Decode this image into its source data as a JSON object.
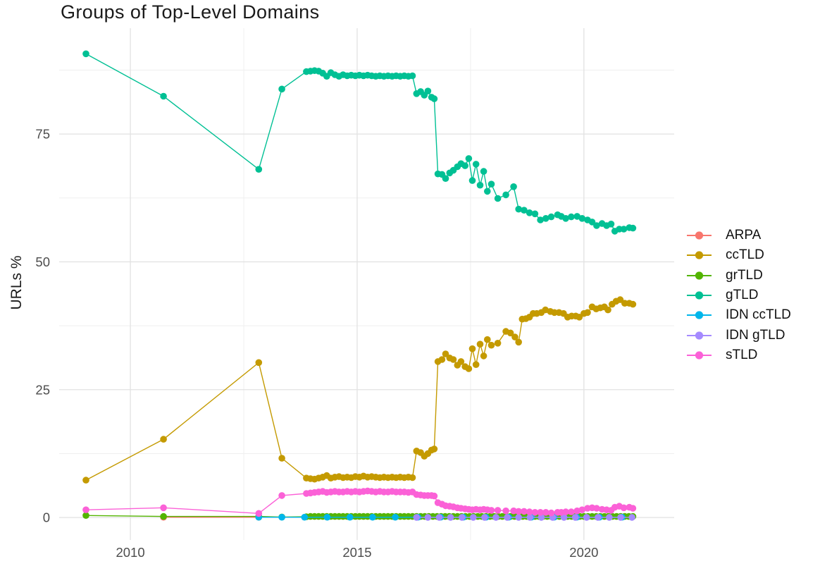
{
  "chart_data": {
    "type": "line",
    "title": "Groups of Top-Level Domains",
    "xlabel": "",
    "ylabel": "URLs %",
    "grid": true,
    "legend_position": "right",
    "xlim": [
      2008.43,
      2021.99
    ],
    "ylim": [
      -4.4,
      95.7
    ],
    "x_ticks": {
      "major": [
        2010,
        2015,
        2020
      ],
      "minor": [
        2012.5,
        2017.5
      ],
      "labels": [
        "2010",
        "2015",
        "2020"
      ]
    },
    "y_ticks": {
      "major": [
        0,
        25,
        50,
        75
      ],
      "minor": [
        12.5,
        37.5,
        62.5,
        87.5
      ],
      "labels": [
        "0",
        "25",
        "50",
        "75"
      ]
    },
    "colors": {
      "grid_major": "#e2e2e2",
      "grid_minor": "#f0f0f0",
      "tick_text": "#4d4d4d",
      "text": "#1a1a1a",
      "background": "#ffffff"
    },
    "series": [
      {
        "name": "ARPA",
        "color": "#F8766D",
        "points": [
          [
            2010.73,
            0.05
          ],
          [
            2012.83,
            0.05
          ]
        ]
      },
      {
        "name": "ccTLD",
        "color": "#C49A00",
        "points": [
          [
            2009.02,
            7.3
          ],
          [
            2010.73,
            15.3
          ],
          [
            2012.83,
            30.3
          ],
          [
            2013.34,
            11.6
          ],
          [
            2013.88,
            7.7
          ],
          [
            2013.97,
            7.6
          ],
          [
            2014.06,
            7.5
          ],
          [
            2014.15,
            7.7
          ],
          [
            2014.24,
            7.9
          ],
          [
            2014.33,
            8.2
          ],
          [
            2014.42,
            7.7
          ],
          [
            2014.51,
            7.9
          ],
          [
            2014.6,
            8.0
          ],
          [
            2014.69,
            7.8
          ],
          [
            2014.78,
            7.9
          ],
          [
            2014.87,
            7.8
          ],
          [
            2014.96,
            8.0
          ],
          [
            2015.05,
            7.9
          ],
          [
            2015.14,
            8.1
          ],
          [
            2015.23,
            7.9
          ],
          [
            2015.32,
            8.0
          ],
          [
            2015.41,
            7.9
          ],
          [
            2015.5,
            7.8
          ],
          [
            2015.59,
            7.9
          ],
          [
            2015.68,
            7.8
          ],
          [
            2015.77,
            7.9
          ],
          [
            2015.86,
            7.8
          ],
          [
            2015.95,
            7.9
          ],
          [
            2016.04,
            7.8
          ],
          [
            2016.13,
            7.9
          ],
          [
            2016.22,
            7.8
          ],
          [
            2016.31,
            13.0
          ],
          [
            2016.4,
            12.7
          ],
          [
            2016.48,
            12.0
          ],
          [
            2016.56,
            12.5
          ],
          [
            2016.64,
            13.2
          ],
          [
            2016.7,
            13.4
          ],
          [
            2016.78,
            30.5
          ],
          [
            2016.87,
            30.9
          ],
          [
            2016.95,
            32.0
          ],
          [
            2017.04,
            31.2
          ],
          [
            2017.12,
            30.9
          ],
          [
            2017.21,
            29.8
          ],
          [
            2017.29,
            30.5
          ],
          [
            2017.38,
            29.5
          ],
          [
            2017.46,
            29.1
          ],
          [
            2017.54,
            33.0
          ],
          [
            2017.62,
            29.9
          ],
          [
            2017.71,
            33.9
          ],
          [
            2017.79,
            31.6
          ],
          [
            2017.87,
            34.8
          ],
          [
            2017.96,
            33.7
          ],
          [
            2018.1,
            34.1
          ],
          [
            2018.28,
            36.4
          ],
          [
            2018.38,
            36.1
          ],
          [
            2018.48,
            35.3
          ],
          [
            2018.56,
            34.3
          ],
          [
            2018.64,
            38.8
          ],
          [
            2018.72,
            38.9
          ],
          [
            2018.8,
            39.2
          ],
          [
            2018.88,
            39.9
          ],
          [
            2018.96,
            39.9
          ],
          [
            2019.06,
            40.1
          ],
          [
            2019.15,
            40.6
          ],
          [
            2019.26,
            40.3
          ],
          [
            2019.35,
            40.1
          ],
          [
            2019.45,
            40.1
          ],
          [
            2019.55,
            39.9
          ],
          [
            2019.64,
            39.2
          ],
          [
            2019.73,
            39.4
          ],
          [
            2019.82,
            39.4
          ],
          [
            2019.9,
            39.2
          ],
          [
            2020.0,
            39.9
          ],
          [
            2020.08,
            40.1
          ],
          [
            2020.18,
            41.2
          ],
          [
            2020.27,
            40.8
          ],
          [
            2020.36,
            41.0
          ],
          [
            2020.45,
            41.2
          ],
          [
            2020.53,
            40.6
          ],
          [
            2020.62,
            41.7
          ],
          [
            2020.71,
            42.3
          ],
          [
            2020.8,
            42.6
          ],
          [
            2020.9,
            41.9
          ],
          [
            2021.0,
            41.9
          ],
          [
            2021.08,
            41.7
          ]
        ]
      },
      {
        "name": "grTLD",
        "color": "#53B400",
        "points": [
          [
            2009.02,
            0.4
          ],
          [
            2010.73,
            0.2
          ],
          [
            2012.83,
            0.2
          ],
          [
            2013.34,
            0.1
          ],
          [
            2013.88,
            0.15
          ]
        ],
        "flat": {
          "from": 2013.97,
          "to": 2021.08,
          "step": 0.09,
          "value": 0.2
        }
      },
      {
        "name": "gTLD",
        "color": "#00C094",
        "points": [
          [
            2009.02,
            90.7
          ],
          [
            2010.73,
            82.4
          ],
          [
            2012.83,
            68.1
          ],
          [
            2013.34,
            83.8
          ],
          [
            2013.88,
            87.2
          ],
          [
            2013.97,
            87.3
          ],
          [
            2014.06,
            87.4
          ],
          [
            2014.15,
            87.3
          ],
          [
            2014.24,
            86.9
          ],
          [
            2014.33,
            86.3
          ],
          [
            2014.42,
            87.0
          ],
          [
            2014.51,
            86.6
          ],
          [
            2014.6,
            86.3
          ],
          [
            2014.69,
            86.6
          ],
          [
            2014.78,
            86.4
          ],
          [
            2014.87,
            86.5
          ],
          [
            2014.96,
            86.4
          ],
          [
            2015.05,
            86.5
          ],
          [
            2015.14,
            86.4
          ],
          [
            2015.23,
            86.5
          ],
          [
            2015.32,
            86.4
          ],
          [
            2015.41,
            86.3
          ],
          [
            2015.5,
            86.4
          ],
          [
            2015.59,
            86.3
          ],
          [
            2015.68,
            86.4
          ],
          [
            2015.77,
            86.3
          ],
          [
            2015.86,
            86.4
          ],
          [
            2015.95,
            86.3
          ],
          [
            2016.04,
            86.4
          ],
          [
            2016.13,
            86.3
          ],
          [
            2016.22,
            86.4
          ],
          [
            2016.31,
            82.9
          ],
          [
            2016.4,
            83.3
          ],
          [
            2016.48,
            82.6
          ],
          [
            2016.56,
            83.4
          ],
          [
            2016.64,
            82.2
          ],
          [
            2016.7,
            81.9
          ],
          [
            2016.78,
            67.2
          ],
          [
            2016.87,
            67.1
          ],
          [
            2016.95,
            66.3
          ],
          [
            2017.04,
            67.4
          ],
          [
            2017.12,
            67.9
          ],
          [
            2017.21,
            68.6
          ],
          [
            2017.29,
            69.2
          ],
          [
            2017.38,
            68.8
          ],
          [
            2017.46,
            70.2
          ],
          [
            2017.54,
            65.9
          ],
          [
            2017.62,
            69.1
          ],
          [
            2017.71,
            65.0
          ],
          [
            2017.79,
            67.7
          ],
          [
            2017.87,
            63.8
          ],
          [
            2017.96,
            65.2
          ],
          [
            2018.1,
            62.4
          ],
          [
            2018.28,
            63.1
          ],
          [
            2018.45,
            64.7
          ],
          [
            2018.56,
            60.3
          ],
          [
            2018.68,
            60.1
          ],
          [
            2018.8,
            59.6
          ],
          [
            2018.92,
            59.4
          ],
          [
            2019.04,
            58.2
          ],
          [
            2019.16,
            58.5
          ],
          [
            2019.28,
            58.8
          ],
          [
            2019.42,
            59.2
          ],
          [
            2019.5,
            58.9
          ],
          [
            2019.6,
            58.5
          ],
          [
            2019.72,
            58.8
          ],
          [
            2019.85,
            58.9
          ],
          [
            2019.96,
            58.5
          ],
          [
            2020.08,
            58.2
          ],
          [
            2020.18,
            57.8
          ],
          [
            2020.28,
            57.1
          ],
          [
            2020.4,
            57.5
          ],
          [
            2020.5,
            57.1
          ],
          [
            2020.6,
            57.4
          ],
          [
            2020.68,
            56.0
          ],
          [
            2020.78,
            56.4
          ],
          [
            2020.88,
            56.4
          ],
          [
            2021.0,
            56.7
          ],
          [
            2021.08,
            56.6
          ]
        ]
      },
      {
        "name": "IDN ccTLD",
        "color": "#00B6EB",
        "points": [
          [
            2012.83,
            0.05
          ]
        ],
        "flat": {
          "from": 2013.34,
          "to": 2021.08,
          "step": 0.5,
          "value": 0.05
        }
      },
      {
        "name": "IDN gTLD",
        "color": "#A58AFF",
        "points": [],
        "flat": {
          "from": 2016.31,
          "to": 2021.08,
          "step": 0.25,
          "value": 0.02
        }
      },
      {
        "name": "sTLD",
        "color": "#FB61D7",
        "points": [
          [
            2009.02,
            1.5
          ],
          [
            2010.73,
            1.9
          ],
          [
            2012.83,
            0.8
          ],
          [
            2013.34,
            4.3
          ],
          [
            2013.88,
            4.7
          ],
          [
            2013.97,
            4.8
          ],
          [
            2014.06,
            4.9
          ],
          [
            2014.15,
            5.0
          ],
          [
            2014.24,
            5.1
          ],
          [
            2014.33,
            4.9
          ],
          [
            2014.42,
            5.0
          ],
          [
            2014.51,
            5.1
          ],
          [
            2014.6,
            5.0
          ],
          [
            2014.69,
            5.0
          ],
          [
            2014.78,
            5.1
          ],
          [
            2014.87,
            5.0
          ],
          [
            2014.96,
            5.1
          ],
          [
            2015.05,
            5.0
          ],
          [
            2015.14,
            5.1
          ],
          [
            2015.23,
            5.2
          ],
          [
            2015.32,
            5.1
          ],
          [
            2015.41,
            5.0
          ],
          [
            2015.5,
            5.1
          ],
          [
            2015.59,
            5.0
          ],
          [
            2015.68,
            5.0
          ],
          [
            2015.77,
            5.1
          ],
          [
            2015.86,
            5.0
          ],
          [
            2015.95,
            5.0
          ],
          [
            2016.04,
            5.0
          ],
          [
            2016.13,
            4.9
          ],
          [
            2016.22,
            5.0
          ],
          [
            2016.31,
            4.5
          ],
          [
            2016.4,
            4.4
          ],
          [
            2016.48,
            4.3
          ],
          [
            2016.56,
            4.3
          ],
          [
            2016.64,
            4.3
          ],
          [
            2016.7,
            4.2
          ],
          [
            2016.78,
            2.9
          ],
          [
            2016.87,
            2.6
          ],
          [
            2016.95,
            2.3
          ],
          [
            2017.04,
            2.2
          ],
          [
            2017.12,
            2.1
          ],
          [
            2017.21,
            1.9
          ],
          [
            2017.29,
            1.8
          ],
          [
            2017.38,
            1.7
          ],
          [
            2017.46,
            1.6
          ],
          [
            2017.54,
            1.5
          ],
          [
            2017.62,
            1.6
          ],
          [
            2017.71,
            1.5
          ],
          [
            2017.79,
            1.6
          ],
          [
            2017.87,
            1.5
          ],
          [
            2017.96,
            1.4
          ],
          [
            2018.1,
            1.4
          ],
          [
            2018.28,
            1.3
          ],
          [
            2018.45,
            1.3
          ],
          [
            2018.56,
            1.2
          ],
          [
            2018.68,
            1.2
          ],
          [
            2018.8,
            1.1
          ],
          [
            2018.92,
            1.0
          ],
          [
            2019.04,
            1.0
          ],
          [
            2019.16,
            1.0
          ],
          [
            2019.28,
            0.9
          ],
          [
            2019.42,
            1.0
          ],
          [
            2019.5,
            1.0
          ],
          [
            2019.6,
            1.1
          ],
          [
            2019.72,
            1.1
          ],
          [
            2019.85,
            1.3
          ],
          [
            2019.96,
            1.5
          ],
          [
            2020.08,
            1.8
          ],
          [
            2020.18,
            1.9
          ],
          [
            2020.28,
            1.8
          ],
          [
            2020.4,
            1.6
          ],
          [
            2020.5,
            1.5
          ],
          [
            2020.6,
            1.4
          ],
          [
            2020.68,
            2.0
          ],
          [
            2020.78,
            2.2
          ],
          [
            2020.88,
            1.9
          ],
          [
            2021.0,
            2.0
          ],
          [
            2021.08,
            1.8
          ]
        ]
      }
    ]
  }
}
